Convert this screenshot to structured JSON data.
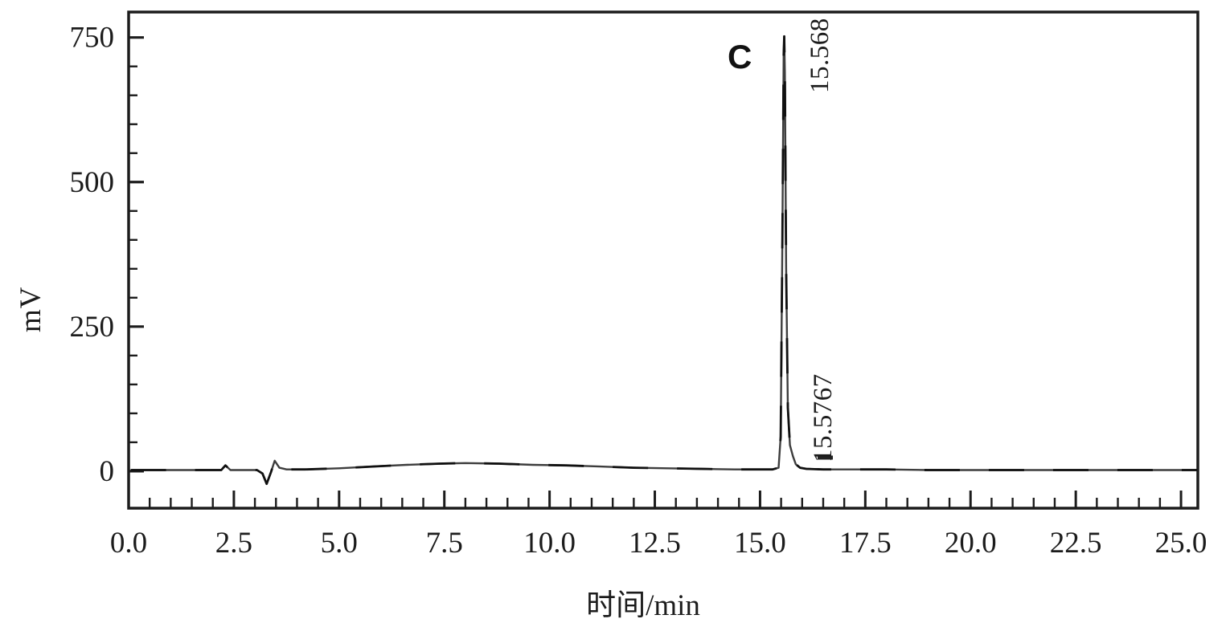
{
  "figure": {
    "background_color": "#ffffff",
    "ink_color": "#1c1c1c",
    "trace_color": "#3d3d3d",
    "trace_dash_color": "#101010"
  },
  "chart_data": {
    "type": "line",
    "title": "",
    "xlabel": "时间/min",
    "ylabel": "mV",
    "xlim": [
      0,
      25.4
    ],
    "ylim": [
      -64,
      794
    ],
    "grid": false,
    "legend": false,
    "x_major_ticks": [
      0,
      2.5,
      5,
      7.5,
      10,
      12.5,
      15,
      17.5,
      20,
      22.5,
      25
    ],
    "x_tick_labels": [
      "0.0",
      "2.5",
      "5.0",
      "7.5",
      "10.0",
      "12.5",
      "15.0",
      "17.5",
      "20.0",
      "22.5",
      "25.0"
    ],
    "x_minor_step": 0.5,
    "y_major_ticks": [
      0,
      250,
      500,
      750
    ],
    "y_tick_labels": [
      "0",
      "250",
      "500",
      "750"
    ],
    "y_minor_step": 50,
    "annotations": [
      {
        "type": "peak-letter",
        "text": "C"
      },
      {
        "type": "retention-time-main",
        "text": "15.568"
      },
      {
        "type": "retention-time-secondary",
        "text": "15.5767"
      }
    ],
    "series": [
      {
        "name": "chromatogram-trace",
        "peak_apex_mv": 752,
        "peak_apex_time": 15.57,
        "points": [
          [
            0.05,
            2
          ],
          [
            0.6,
            2
          ],
          [
            1.2,
            2
          ],
          [
            1.8,
            2
          ],
          [
            2.2,
            2
          ],
          [
            2.3,
            10
          ],
          [
            2.42,
            2
          ],
          [
            2.8,
            2
          ],
          [
            3.05,
            2
          ],
          [
            3.18,
            -4
          ],
          [
            3.28,
            -22
          ],
          [
            3.38,
            -2
          ],
          [
            3.47,
            18
          ],
          [
            3.58,
            6
          ],
          [
            3.75,
            3
          ],
          [
            4.2,
            3
          ],
          [
            5.0,
            5
          ],
          [
            5.8,
            8
          ],
          [
            6.6,
            11
          ],
          [
            7.4,
            13
          ],
          [
            8.0,
            14
          ],
          [
            8.8,
            13
          ],
          [
            9.6,
            11
          ],
          [
            10.4,
            10
          ],
          [
            11.2,
            8
          ],
          [
            12.0,
            6
          ],
          [
            12.8,
            5
          ],
          [
            13.6,
            4
          ],
          [
            14.4,
            3
          ],
          [
            15.0,
            3
          ],
          [
            15.3,
            3
          ],
          [
            15.44,
            6
          ],
          [
            15.49,
            60
          ],
          [
            15.53,
            400
          ],
          [
            15.56,
            720
          ],
          [
            15.575,
            752
          ],
          [
            15.59,
            690
          ],
          [
            15.62,
            350
          ],
          [
            15.66,
            110
          ],
          [
            15.71,
            45
          ],
          [
            15.78,
            26
          ],
          [
            15.85,
            12
          ],
          [
            15.95,
            6
          ],
          [
            16.1,
            4
          ],
          [
            16.5,
            3
          ],
          [
            17.0,
            3
          ],
          [
            18.0,
            3
          ],
          [
            19.0,
            2
          ],
          [
            20.0,
            2
          ],
          [
            21.0,
            2
          ],
          [
            22.0,
            2
          ],
          [
            23.0,
            2
          ],
          [
            24.0,
            2
          ],
          [
            25.0,
            2
          ],
          [
            25.38,
            2
          ]
        ]
      }
    ]
  }
}
